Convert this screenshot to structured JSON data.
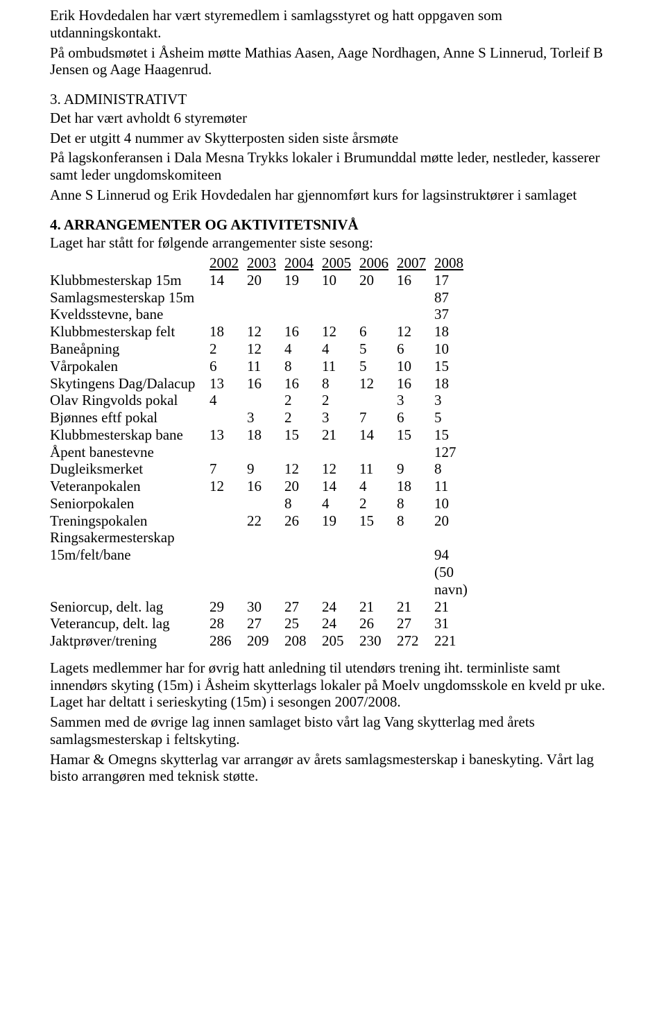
{
  "intro": {
    "p1": "Erik Hovdedalen har vært styremedlem i samlagsstyret og hatt oppgaven som utdanningskontakt.",
    "p2": "På ombudsmøtet i Åsheim møtte Mathias Aasen, Aage Nordhagen, Anne S Linnerud, Torleif B Jensen og Aage Haagenrud."
  },
  "sec3": {
    "heading": "3. ADMINISTRATIVT",
    "l1": "Det har vært avholdt 6 styremøter",
    "l2": "Det er utgitt 4 nummer av Skytterposten siden siste årsmøte",
    "l3": "På lagskonferansen i Dala Mesna Trykks lokaler i Brumunddal møtte leder, nestleder, kasserer samt leder ungdomskomiteen",
    "l4": "Anne S Linnerud og Erik Hovdedalen har gjennomført kurs for lagsinstruktører i samlaget"
  },
  "sec4": {
    "heading": "4. ARRANGEMENTER OG AKTIVITETSNIVÅ",
    "intro": "Laget har stått for følgende arrangementer siste sesong:",
    "years": [
      "2002",
      "2003",
      "2004",
      "2005",
      "2006",
      "2007",
      "2008"
    ],
    "rows": [
      {
        "label": "Klubbmesterskap 15m",
        "v": [
          "14",
          "20",
          "19",
          "10",
          "20",
          "16",
          "17"
        ]
      },
      {
        "label": "Samlagsmesterskap 15m",
        "v": [
          "",
          "",
          "",
          "",
          "",
          "",
          "87"
        ]
      },
      {
        "label": "Kveldsstevne, bane",
        "v": [
          "",
          "",
          "",
          "",
          "",
          "",
          "37"
        ]
      },
      {
        "label": "Klubbmesterskap felt",
        "v": [
          "18",
          "12",
          "16",
          "12",
          "6",
          "12",
          "18"
        ]
      },
      {
        "label": "Baneåpning",
        "v": [
          "2",
          "12",
          "4",
          "4",
          "5",
          "6",
          "10"
        ]
      },
      {
        "label": "Vårpokalen",
        "v": [
          "6",
          "11",
          "8",
          "11",
          "5",
          "10",
          "15"
        ]
      },
      {
        "label": "Skytingens Dag/Dalacup",
        "v": [
          "13",
          "16",
          "16",
          "8",
          "12",
          "16",
          "18"
        ]
      },
      {
        "label": "Olav Ringvolds pokal",
        "v": [
          "4",
          "",
          "2",
          "2",
          "",
          "3",
          "3"
        ]
      },
      {
        "label": "Bjønnes eftf pokal",
        "v": [
          "",
          "3",
          "2",
          "3",
          "7",
          "6",
          "5"
        ]
      },
      {
        "label": "Klubbmesterskap bane",
        "v": [
          "13",
          "18",
          "15",
          "21",
          "14",
          "15",
          "15"
        ]
      },
      {
        "label": "Åpent banestevne",
        "v": [
          "",
          "",
          "",
          "",
          "",
          "",
          "127"
        ]
      },
      {
        "label": "Dugleiksmerket",
        "v": [
          "7",
          "9",
          "12",
          "12",
          "11",
          "9",
          "8"
        ]
      },
      {
        "label": "Veteranpokalen",
        "v": [
          "12",
          "16",
          "20",
          "14",
          "4",
          "18",
          "11"
        ]
      },
      {
        "label": "Seniorpokalen",
        "v": [
          "",
          "",
          "8",
          "4",
          "2",
          "8",
          "10"
        ]
      },
      {
        "label": "Treningspokalen",
        "v": [
          "",
          "22",
          "26",
          "19",
          "15",
          "8",
          "20"
        ]
      }
    ],
    "ring_label": "Ringsakermesterskap",
    "ring_sub": "15m/felt/bane",
    "ring_val": "94 (50 navn)",
    "rows2": [
      {
        "label": "Seniorcup, delt. lag",
        "v": [
          "29",
          "30",
          "27",
          "24",
          "21",
          "21",
          "21"
        ]
      },
      {
        "label": "Veterancup, delt. lag",
        "v": [
          "28",
          "27",
          "25",
          "24",
          "26",
          "27",
          "31"
        ]
      },
      {
        "label": "Jaktprøver/trening",
        "v": [
          "286",
          "209",
          "208",
          "205",
          "230",
          "272",
          "221"
        ]
      }
    ]
  },
  "outro": {
    "p1": "Lagets medlemmer har for øvrig hatt anledning til utendørs trening iht. terminliste samt innendørs skyting (15m) i Åsheim skytterlags lokaler på Moelv ungdomsskole en kveld pr uke. Laget har deltatt i serieskyting (15m) i sesongen 2007/2008.",
    "p2": "Sammen med de øvrige lag innen samlaget bisto vårt lag Vang skytterlag med årets samlagsmesterskap i feltskyting.",
    "p3": "Hamar & Omegns skytterlag var arrangør av årets samlagsmesterskap i baneskyting. Vårt lag bisto arrangøren med teknisk støtte."
  }
}
